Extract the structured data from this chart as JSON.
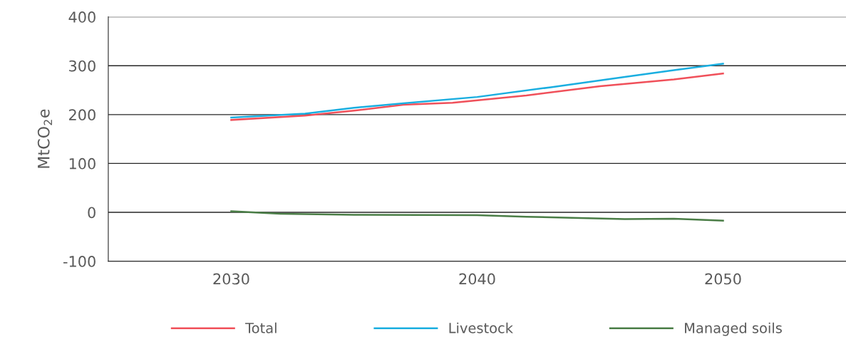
{
  "chart_data": {
    "type": "line",
    "ylabel": "MtCO$_{2}$e",
    "xlim": [
      2025,
      2055
    ],
    "xticks": [
      2030,
      2040,
      2050
    ],
    "ylim": [
      -100,
      400
    ],
    "yticks": [
      -100,
      0,
      100,
      200,
      300,
      400
    ],
    "grid": "y",
    "legend": "bottom",
    "line_style": "solid",
    "series": [
      {
        "name": "Total",
        "color": "#f0505a",
        "x": [
          2030,
          2033,
          2035,
          2037,
          2039,
          2042,
          2045,
          2048,
          2050
        ],
        "values": [
          189,
          198,
          208,
          220,
          224,
          239,
          258,
          272,
          284
        ]
      },
      {
        "name": "Livestock",
        "color": "#1aaee0",
        "x": [
          2030,
          2033,
          2035,
          2037,
          2040,
          2043,
          2046,
          2048,
          2050
        ],
        "values": [
          194,
          202,
          214,
          223,
          236,
          256,
          277,
          291,
          304
        ]
      },
      {
        "name": "Managed soils",
        "color": "#4a7d46",
        "x": [
          2030,
          2032,
          2035,
          2040,
          2042,
          2046,
          2048,
          2050
        ],
        "values": [
          2,
          -3,
          -5,
          -6,
          -9,
          -14,
          -13,
          -17
        ]
      }
    ]
  }
}
